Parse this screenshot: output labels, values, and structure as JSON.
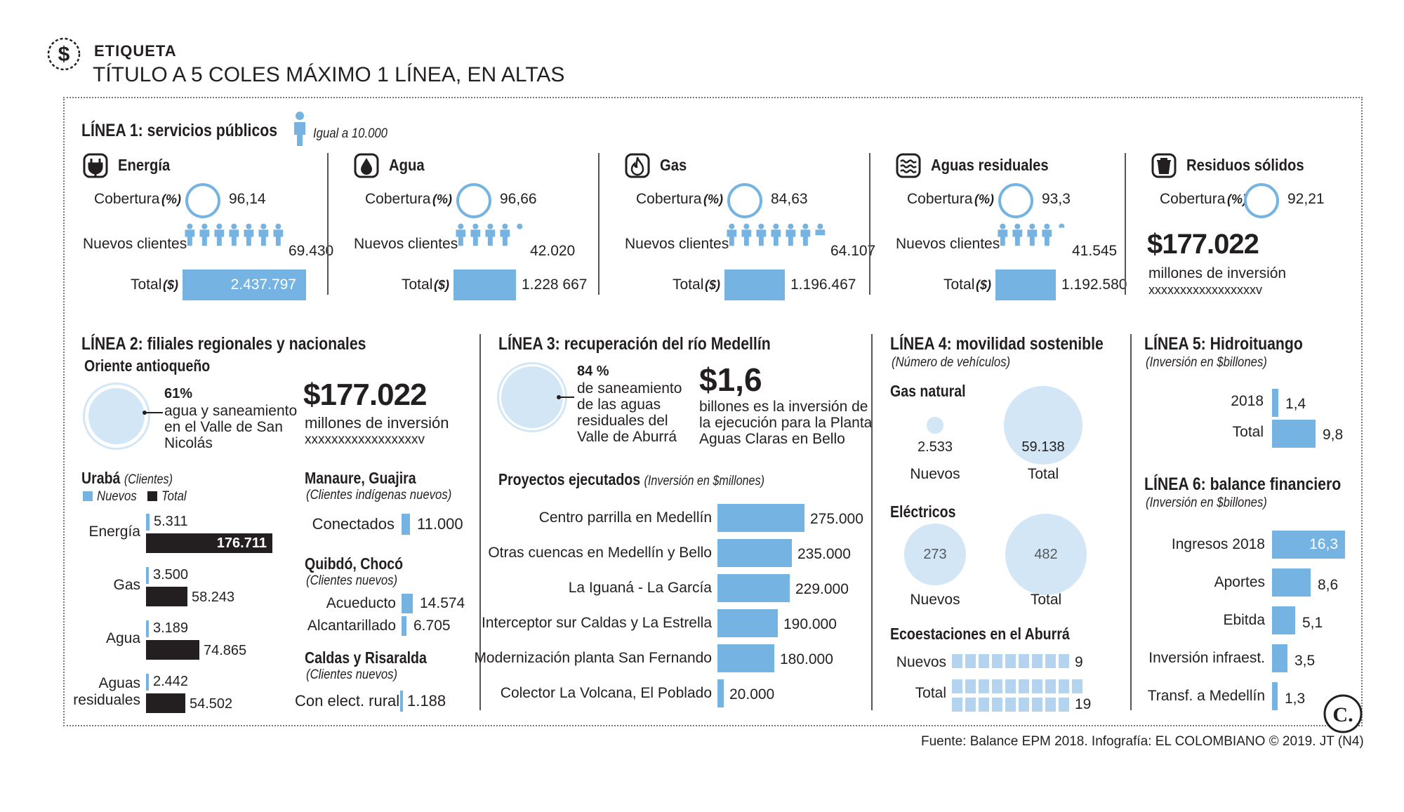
{
  "header": {
    "tag": "ETIQUETA",
    "title": "TÍTULO A 5 COLES MÁXIMO 1 LÍNEA, EN ALTAS"
  },
  "colors": {
    "blue": "#74b3e2",
    "light": "#d2e6f6",
    "dark": "#231f20"
  },
  "chart_data": [
    {
      "type": "table",
      "title": "LÍNEA 1: servicios públicos",
      "legend": "Igual a 10.000",
      "row_labels": {
        "cov": "Cobertura",
        "pct": "(%)",
        "new": "Nuevos clientes",
        "tot": "Total",
        "cur": "($)"
      },
      "services": [
        {
          "name": "Energía",
          "icon": "plug-icon",
          "coverage": "96,14",
          "coverage_value": 96.14,
          "new_clients": "69.430",
          "new_value": 69430,
          "total": "2.437.797",
          "total_value": 2437797
        },
        {
          "name": "Agua",
          "icon": "drop-icon",
          "coverage": "96,66",
          "coverage_value": 96.66,
          "new_clients": "42.020",
          "new_value": 42020,
          "total": "1.228 667",
          "total_value": 1228667
        },
        {
          "name": "Gas",
          "icon": "flame-icon",
          "coverage": "84,63",
          "coverage_value": 84.63,
          "new_clients": "64.107",
          "new_value": 64107,
          "total": "1.196.467",
          "total_value": 1196467
        },
        {
          "name": "Aguas residuales",
          "icon": "waves-icon",
          "coverage": "93,3",
          "coverage_value": 93.3,
          "new_clients": "41.545",
          "new_value": 41545,
          "total": "1.192.580",
          "total_value": 1192580
        },
        {
          "name": "Residuos sólidos",
          "icon": "trash-icon",
          "coverage": "92,21",
          "coverage_value": 92.21,
          "big": "$177.022",
          "big_label": "millones de inversión",
          "placeholder": "xxxxxxxxxxxxxxxxxv"
        }
      ]
    },
    {
      "type": "table",
      "title": "LÍNEA 2: filiales regionales y nacionales",
      "oriente": {
        "title": "Oriente antioqueño",
        "pct": "61%",
        "pct_value": 61,
        "text": [
          "agua y saneamiento",
          "en el Valle de San",
          "Nicolás"
        ],
        "big": "$177.022",
        "big_label": "millones de inversión",
        "placeholder": "xxxxxxxxxxxxxxxxxv"
      },
      "uraba": {
        "title": "Urabá",
        "unit": "(Clientes)",
        "legend": [
          "Nuevos",
          "Total"
        ],
        "rows": [
          {
            "label": [
              "Energía"
            ],
            "nuevos": "5.311",
            "nuevos_value": 5311,
            "total": "176.711",
            "total_value": 176711
          },
          {
            "label": [
              "Gas"
            ],
            "nuevos": "3.500",
            "nuevos_value": 3500,
            "total": "58.243",
            "total_value": 58243
          },
          {
            "label": [
              "Agua"
            ],
            "nuevos": "3.189",
            "nuevos_value": 3189,
            "total": "74.865",
            "total_value": 74865
          },
          {
            "label": [
              "Aguas",
              "residuales"
            ],
            "nuevos": "2.442",
            "nuevos_value": 2442,
            "total": "54.502",
            "total_value": 54502
          }
        ]
      },
      "manaure": {
        "title": "Manaure, Guajira",
        "unit": "(Clientes indígenas nuevos)",
        "label": "Conectados",
        "value": "11.000"
      },
      "quibdo": {
        "title": "Quibdó, Chocó",
        "unit": "(Clientes nuevos)",
        "rows": [
          {
            "label": "Acueducto",
            "value": "14.574",
            "num": 14574
          },
          {
            "label": "Alcantarillado",
            "value": "6.705",
            "num": 6705
          }
        ]
      },
      "caldas": {
        "title": "Caldas y Risaralda",
        "unit": "(Clientes nuevos)",
        "label": "Con elect. rural",
        "value": "1.188"
      }
    },
    {
      "type": "bar",
      "title": "LÍNEA 3: recuperación del río Medellín",
      "pct": "84 %",
      "pct_value": 84,
      "pct_text": [
        "de saneamiento",
        "de las aguas",
        "residuales del",
        "Valle de Aburrá"
      ],
      "big": "$1,6",
      "big_text": [
        "billones es la inversión de",
        "la ejecución para la Planta",
        "Aguas Claras en Bello"
      ],
      "subtitle": "Proyectos ejecutados",
      "unit": "(Inversión en $millones)",
      "categories": [
        "Centro parrilla en Medellín",
        "Otras cuencas en Medellín y Bello",
        "La Iguaná - La García",
        "Interceptor sur Caldas y La Estrella",
        "Modernización planta San Fernando",
        "Colector La Volcana, El Poblado"
      ],
      "values": [
        275000,
        235000,
        229000,
        190000,
        180000,
        20000
      ],
      "labels": [
        "275.000",
        "235.000",
        "229.000",
        "190.000",
        "180.000",
        "20.000"
      ]
    },
    {
      "type": "scatter",
      "title": "LÍNEA 4: movilidad sostenible",
      "unit": "(Número de vehículos)",
      "gas": {
        "title": "Gas natural",
        "nuevos": "2.533",
        "nuevos_value": 2533,
        "total": "59.138",
        "total_value": 59138
      },
      "elec": {
        "title": "Eléctricos",
        "nuevos": "273",
        "nuevos_value": 273,
        "total": "482",
        "total_value": 482
      },
      "eco": {
        "title": "Ecoestaciones en el Aburrá",
        "nuevos": "9",
        "nuevos_value": 9,
        "total": "19",
        "total_value": 19
      },
      "labels": {
        "nuevos": "Nuevos",
        "total": "Total"
      }
    },
    {
      "type": "bar",
      "title": "LÍNEA 5: Hidroituango",
      "unit": "(Inversión en $billones)",
      "categories": [
        "2018",
        "Total"
      ],
      "values": [
        1.4,
        9.8
      ],
      "labels": [
        "1,4",
        "9,8"
      ]
    },
    {
      "type": "bar",
      "title": "LÍNEA 6: balance financiero",
      "unit": "(Inversión en $billones)",
      "categories": [
        "Ingresos 2018",
        "Aportes",
        "Ebitda",
        "Inversión infraest.",
        "Transf. a Medellín"
      ],
      "values": [
        16.3,
        8.6,
        5.1,
        3.5,
        1.3
      ],
      "labels": [
        "16,3",
        "8,6",
        "5,1",
        "3,5",
        "1,3"
      ]
    }
  ],
  "footer": {
    "source": "Fuente: Balance EPM 2018. Infografía: EL COLOMBIANO © 2019. JT (N4)",
    "logo": "C."
  }
}
